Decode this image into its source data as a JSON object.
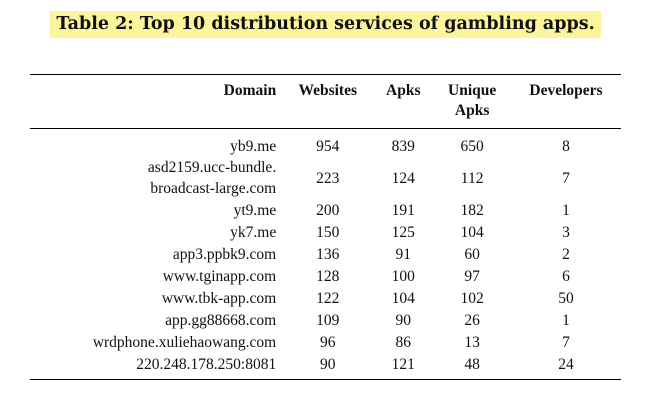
{
  "caption": {
    "text": "Table 2: Top 10 distribution services of gambling apps.",
    "highlight_color": "#fdf59c"
  },
  "table": {
    "headers": {
      "domain": "Domain",
      "websites": "Websites",
      "apks": "Apks",
      "unique_line1": "Unique",
      "unique_line2": "Apks",
      "developers": "Developers"
    },
    "rows": [
      {
        "domain": "yb9.me",
        "websites": "954",
        "apks": "839",
        "unique_apks": "650",
        "developers": "8"
      },
      {
        "domain_line1": "asd2159.ucc-bundle.",
        "domain_line2": "broadcast-large.com",
        "websites": "223",
        "apks": "124",
        "unique_apks": "112",
        "developers": "7"
      },
      {
        "domain": "yt9.me",
        "websites": "200",
        "apks": "191",
        "unique_apks": "182",
        "developers": "1"
      },
      {
        "domain": "yk7.me",
        "websites": "150",
        "apks": "125",
        "unique_apks": "104",
        "developers": "3"
      },
      {
        "domain": "app3.ppbk9.com",
        "websites": "136",
        "apks": "91",
        "unique_apks": "60",
        "developers": "2"
      },
      {
        "domain": "www.tginapp.com",
        "websites": "128",
        "apks": "100",
        "unique_apks": "97",
        "developers": "6"
      },
      {
        "domain": "www.tbk-app.com",
        "websites": "122",
        "apks": "104",
        "unique_apks": "102",
        "developers": "50"
      },
      {
        "domain": "app.gg88668.com",
        "websites": "109",
        "apks": "90",
        "unique_apks": "26",
        "developers": "1"
      },
      {
        "domain": "wrdphone.xuliehaowang.com",
        "websites": "96",
        "apks": "86",
        "unique_apks": "13",
        "developers": "7"
      },
      {
        "domain": "220.248.178.250:8081",
        "websites": "90",
        "apks": "121",
        "unique_apks": "48",
        "developers": "24"
      }
    ]
  }
}
